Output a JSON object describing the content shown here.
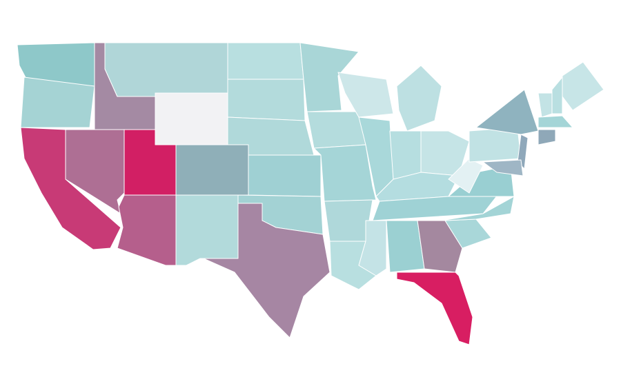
{
  "map": {
    "regions": [
      {
        "color": "#8ec8c9"
      },
      {
        "color": "#a5d3d4"
      },
      {
        "color": "#c83a76"
      },
      {
        "color": "#ae6f94"
      },
      {
        "color": "#a48aa3"
      },
      {
        "color": "#b0d6d8"
      },
      {
        "color": "#f2f2f4"
      },
      {
        "color": "#d21f64"
      },
      {
        "color": "#8fafb8"
      },
      {
        "color": "#b55f8c"
      },
      {
        "color": "#b2dadb"
      },
      {
        "color": "#b8dfe0"
      },
      {
        "color": "#b3dbdc"
      },
      {
        "color": "#b0d9da"
      },
      {
        "color": "#9fd0d3"
      },
      {
        "color": "#a3d2d4"
      },
      {
        "color": "#a686a3"
      },
      {
        "color": "#a9d6d7"
      },
      {
        "color": "#b4dcdd"
      },
      {
        "color": "#a5d5d7"
      },
      {
        "color": "#afd8da"
      },
      {
        "color": "#b8dfe0"
      },
      {
        "color": "#cde7e9"
      },
      {
        "color": "#a9d8da"
      },
      {
        "color": "#bde0e2"
      },
      {
        "color": "#b6dee0"
      },
      {
        "color": "#c5e4e6"
      },
      {
        "color": "#b4dde0"
      },
      {
        "color": "#9fd2d5"
      },
      {
        "color": "#c4e3e6"
      },
      {
        "color": "#9bd0d2"
      },
      {
        "color": "#a4889f"
      },
      {
        "color": "#d81e62"
      },
      {
        "color": "#a9d7d9"
      },
      {
        "color": "#a3d4d6"
      },
      {
        "color": "#99cfd2"
      },
      {
        "color": "#e3f1f3"
      },
      {
        "color": "#c1e2e4"
      },
      {
        "color": "#8fb3bf"
      },
      {
        "color": "#8fa8ba"
      },
      {
        "color": "#9fb6c5"
      },
      {
        "color": "#c7e5e7"
      },
      {
        "color": "#c3e3e5"
      },
      {
        "color": "#b9dfe1"
      },
      {
        "color": "#a4d5d7"
      },
      {
        "color": "#8fa8b8"
      }
    ]
  }
}
